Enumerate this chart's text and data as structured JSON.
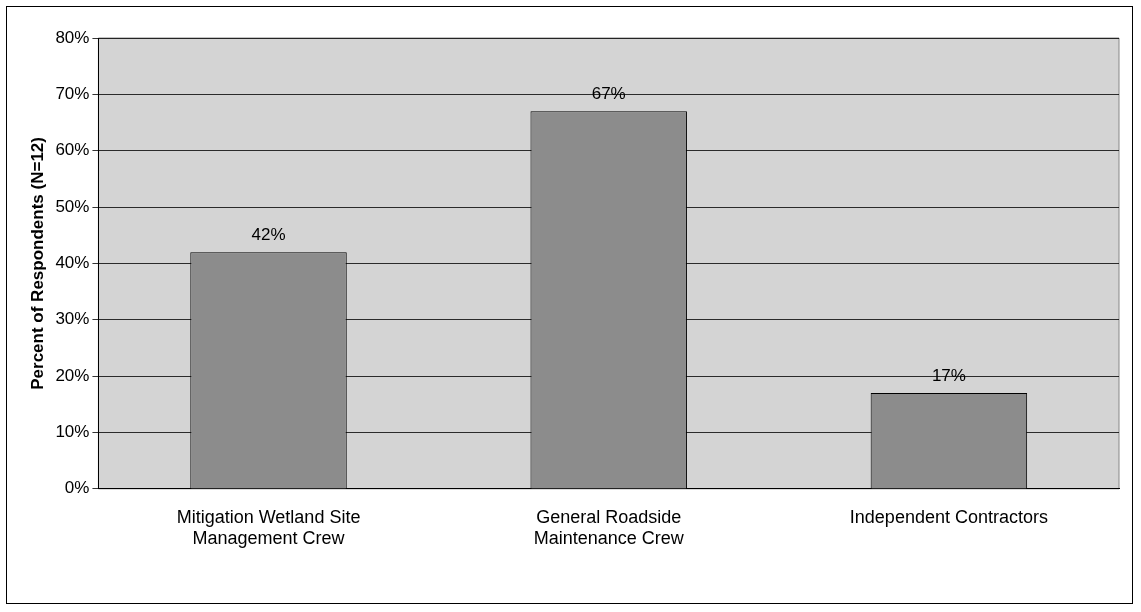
{
  "chart_data": {
    "type": "bar",
    "ylabel": "Percent of Respondents (N=12)",
    "categories": [
      "Mitigation Wetland Site Management Crew",
      "General Roadside Maintenance Crew",
      "Independent Contractors"
    ],
    "values": [
      42,
      67,
      17
    ],
    "value_labels": [
      "42%",
      "67%",
      "17%"
    ],
    "color": "#8c8c8c",
    "ylim": [
      0,
      80
    ],
    "yticks": [
      {
        "value": 0,
        "label": "0%"
      },
      {
        "value": 10,
        "label": "10%"
      },
      {
        "value": 20,
        "label": "20%"
      },
      {
        "value": 30,
        "label": "30%"
      },
      {
        "value": 40,
        "label": "40%"
      },
      {
        "value": 50,
        "label": "50%"
      },
      {
        "value": 60,
        "label": "60%"
      },
      {
        "value": 70,
        "label": "70%"
      },
      {
        "value": 80,
        "label": "80%"
      }
    ],
    "grid": "y",
    "legend": false
  }
}
